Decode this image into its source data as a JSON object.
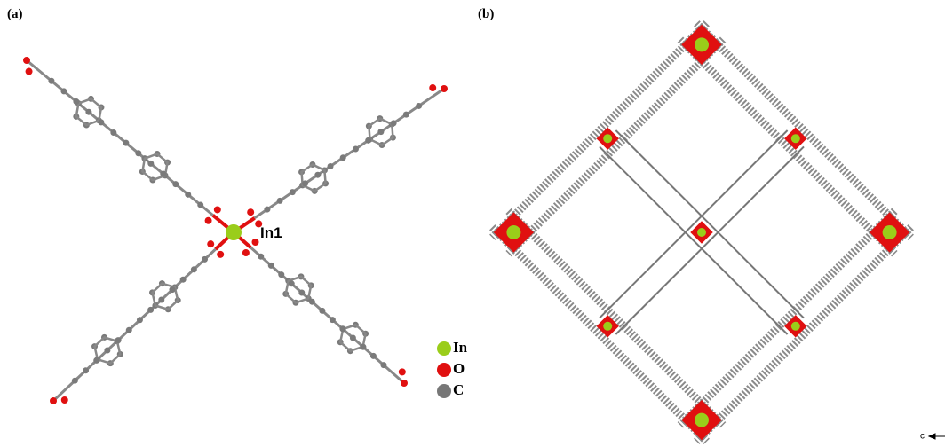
{
  "panels": {
    "a": {
      "label": "(a)",
      "atom_label": "In1",
      "legend": [
        {
          "label": "In",
          "color": "#9acd1a"
        },
        {
          "label": "O",
          "color": "#e01010"
        },
        {
          "label": "C",
          "color": "#777777"
        }
      ]
    },
    "b": {
      "label": "(b)",
      "axis_label": "c"
    }
  }
}
